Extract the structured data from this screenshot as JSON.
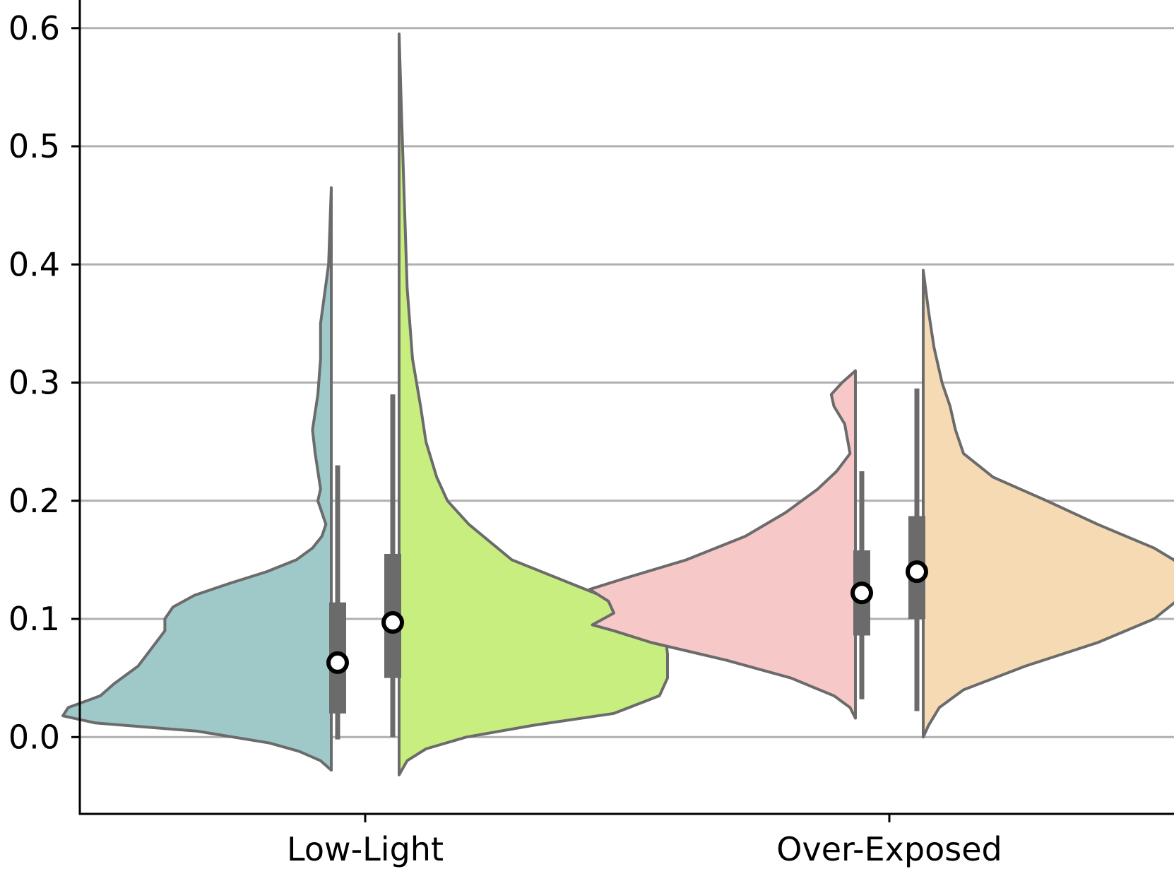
{
  "chart_data": {
    "type": "violin",
    "split": true,
    "categories": [
      "Low-Light",
      "Over-Exposed"
    ],
    "ylim": [
      -0.065,
      0.625
    ],
    "yticks": [
      0.0,
      0.1,
      0.2,
      0.3,
      0.4,
      0.5,
      0.6
    ],
    "ytick_labels": [
      "0.0",
      "0.1",
      "0.2",
      "0.3",
      "0.4",
      "0.5",
      "0.6"
    ],
    "grid": "horizontal",
    "colors": {
      "inner_box": "#6b6b6b",
      "outline": "#6b6b6b",
      "grid": "#b0b0b0"
    },
    "violins": [
      {
        "category": "Low-Light",
        "side": "left",
        "color": "#9fc8c8",
        "min": -0.028,
        "max": 0.465,
        "q1": 0.02,
        "median": 0.063,
        "q3": 0.114,
        "whisker_low": -0.002,
        "whisker_high": 0.23,
        "density": [
          [
            -0.028,
            0.0
          ],
          [
            -0.02,
            0.04
          ],
          [
            -0.012,
            0.12
          ],
          [
            -0.005,
            0.23
          ],
          [
            0.005,
            0.5
          ],
          [
            0.012,
            0.88
          ],
          [
            0.018,
            1.0
          ],
          [
            0.025,
            0.98
          ],
          [
            0.035,
            0.86
          ],
          [
            0.045,
            0.81
          ],
          [
            0.06,
            0.72
          ],
          [
            0.075,
            0.67
          ],
          [
            0.09,
            0.62
          ],
          [
            0.1,
            0.62
          ],
          [
            0.11,
            0.59
          ],
          [
            0.12,
            0.51
          ],
          [
            0.13,
            0.38
          ],
          [
            0.14,
            0.24
          ],
          [
            0.15,
            0.13
          ],
          [
            0.16,
            0.07
          ],
          [
            0.17,
            0.035
          ],
          [
            0.18,
            0.02
          ],
          [
            0.2,
            0.05
          ],
          [
            0.21,
            0.04
          ],
          [
            0.24,
            0.06
          ],
          [
            0.26,
            0.07
          ],
          [
            0.29,
            0.05
          ],
          [
            0.32,
            0.04
          ],
          [
            0.35,
            0.04
          ],
          [
            0.4,
            0.01
          ],
          [
            0.465,
            0.0
          ]
        ]
      },
      {
        "category": "Low-Light",
        "side": "right",
        "color": "#c8ee80",
        "min": -0.032,
        "max": 0.595,
        "q1": 0.05,
        "median": 0.097,
        "q3": 0.155,
        "whisker_low": 0.0,
        "whisker_high": 0.29,
        "density": [
          [
            -0.032,
            0.0
          ],
          [
            -0.02,
            0.03
          ],
          [
            -0.01,
            0.1
          ],
          [
            0.0,
            0.25
          ],
          [
            0.01,
            0.5
          ],
          [
            0.02,
            0.8
          ],
          [
            0.035,
            0.97
          ],
          [
            0.05,
            1.0
          ],
          [
            0.07,
            1.0
          ],
          [
            0.09,
            0.99
          ],
          [
            0.1,
            0.93
          ],
          [
            0.12,
            0.75
          ],
          [
            0.15,
            0.42
          ],
          [
            0.18,
            0.26
          ],
          [
            0.2,
            0.18
          ],
          [
            0.22,
            0.14
          ],
          [
            0.25,
            0.1
          ],
          [
            0.28,
            0.08
          ],
          [
            0.32,
            0.05
          ],
          [
            0.38,
            0.03
          ],
          [
            0.45,
            0.02
          ],
          [
            0.52,
            0.01
          ],
          [
            0.595,
            0.0
          ]
        ]
      },
      {
        "category": "Over-Exposed",
        "side": "left",
        "color": "#f6c8c8",
        "min": 0.016,
        "max": 0.31,
        "q1": 0.086,
        "median": 0.122,
        "q3": 0.158,
        "whisker_low": 0.032,
        "whisker_high": 0.225,
        "density": [
          [
            0.016,
            0.0
          ],
          [
            0.025,
            0.02
          ],
          [
            0.035,
            0.08
          ],
          [
            0.05,
            0.24
          ],
          [
            0.065,
            0.48
          ],
          [
            0.08,
            0.76
          ],
          [
            0.09,
            0.9
          ],
          [
            0.095,
            0.98
          ],
          [
            0.105,
            0.9
          ],
          [
            0.115,
            0.92
          ],
          [
            0.125,
            0.99
          ],
          [
            0.135,
            0.85
          ],
          [
            0.15,
            0.63
          ],
          [
            0.17,
            0.41
          ],
          [
            0.19,
            0.26
          ],
          [
            0.21,
            0.14
          ],
          [
            0.225,
            0.07
          ],
          [
            0.24,
            0.02
          ],
          [
            0.265,
            0.04
          ],
          [
            0.28,
            0.08
          ],
          [
            0.29,
            0.09
          ],
          [
            0.3,
            0.05
          ],
          [
            0.31,
            0.0
          ]
        ]
      },
      {
        "category": "Over-Exposed",
        "side": "right",
        "color": "#f6dab4",
        "min": 0.0,
        "max": 0.395,
        "q1": 0.1,
        "median": 0.14,
        "q3": 0.187,
        "whisker_low": 0.022,
        "whisker_high": 0.295,
        "density": [
          [
            0.0,
            0.0
          ],
          [
            0.01,
            0.02
          ],
          [
            0.025,
            0.06
          ],
          [
            0.04,
            0.15
          ],
          [
            0.06,
            0.38
          ],
          [
            0.08,
            0.65
          ],
          [
            0.1,
            0.86
          ],
          [
            0.12,
            0.97
          ],
          [
            0.13,
            1.0
          ],
          [
            0.145,
            0.97
          ],
          [
            0.16,
            0.86
          ],
          [
            0.18,
            0.65
          ],
          [
            0.2,
            0.46
          ],
          [
            0.22,
            0.26
          ],
          [
            0.24,
            0.15
          ],
          [
            0.26,
            0.12
          ],
          [
            0.28,
            0.1
          ],
          [
            0.3,
            0.07
          ],
          [
            0.33,
            0.04
          ],
          [
            0.36,
            0.02
          ],
          [
            0.395,
            0.0
          ]
        ]
      }
    ]
  }
}
